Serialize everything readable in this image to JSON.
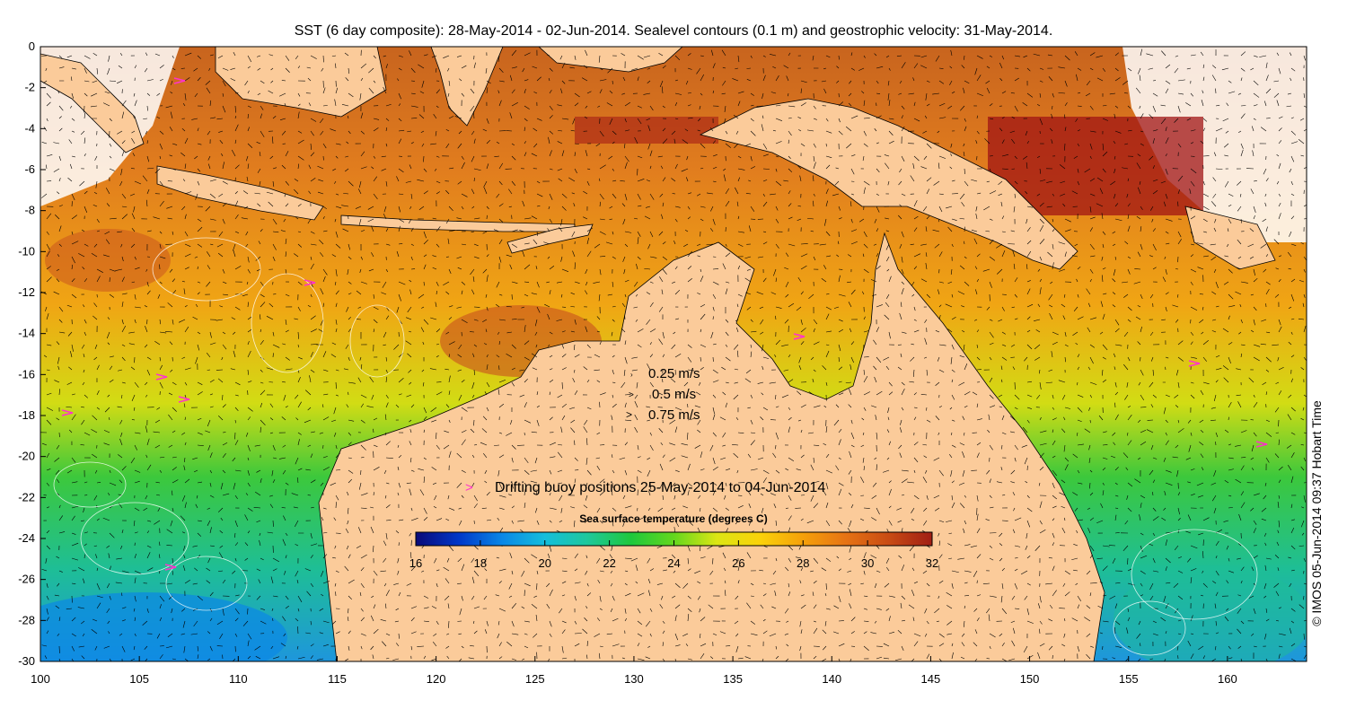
{
  "title": "SST (6 day composite): 28-May-2014 - 02-Jun-2014. Sealevel contours (0.1 m) and geostrophic velocity: 31-May-2014.",
  "credit": "© IMOS 05-Jun-2014 09:37 Hobart Time",
  "axes": {
    "x_ticks": [
      "100",
      "105",
      "110",
      "115",
      "120",
      "125",
      "130",
      "135",
      "140",
      "145",
      "150",
      "155",
      "160"
    ],
    "y_ticks": [
      "0",
      "-2",
      "-4",
      "-6",
      "-8",
      "-10",
      "-12",
      "-14",
      "-16",
      "-18",
      "-20",
      "-22",
      "-24",
      "-26",
      "-28",
      "-30"
    ],
    "lon_range": [
      100,
      164
    ],
    "lat_range": [
      -30,
      0
    ]
  },
  "velocity_legend": {
    "items": [
      {
        "label": "0.25 m/s",
        "speed": 0.25
      },
      {
        "label": "0.5 m/s",
        "speed": 0.5
      },
      {
        "label": "0.75 m/s",
        "speed": 0.75
      }
    ]
  },
  "buoy_legend": {
    "symbol": ">",
    "label": "Drifting buoy positions 25-May-2014 to 04-Jun-2014",
    "color": "#ff33cc"
  },
  "colorbar": {
    "title": "Sea surface temperature (degrees C)",
    "ticks": [
      "16",
      "18",
      "20",
      "22",
      "24",
      "26",
      "28",
      "30",
      "32"
    ],
    "range": [
      16,
      32
    ],
    "colors": [
      "#0a0a78",
      "#0037c8",
      "#0a87e6",
      "#14bedc",
      "#1ec89b",
      "#1ec83c",
      "#64d71e",
      "#dce614",
      "#fad20a",
      "#f5a00a",
      "#e67314",
      "#c84b14",
      "#a01e14"
    ]
  },
  "land_color": "#fbcb9a"
}
